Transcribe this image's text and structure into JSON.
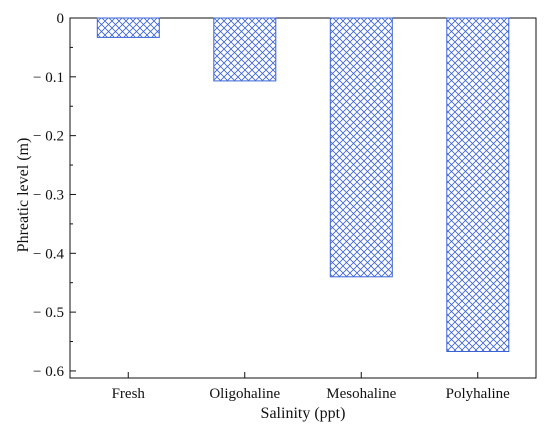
{
  "chart_data": {
    "type": "bar",
    "title": "",
    "xlabel": "Salinity (ppt)",
    "ylabel": "Phreatic level (m)",
    "categories": [
      "Fresh",
      "Oligohaline",
      "Mesohaline",
      "Polyhaline"
    ],
    "values": [
      -0.033,
      -0.107,
      -0.44,
      -0.567
    ],
    "ylim": [
      -0.612,
      0
    ],
    "yticks": [
      0,
      -0.1,
      -0.2,
      -0.3,
      -0.4,
      -0.5,
      -0.6
    ],
    "ytick_labels": [
      "0",
      "− 0.1",
      "− 0.2",
      "− 0.3",
      "− 0.4",
      "− 0.5",
      "− 0.6"
    ],
    "grid": false,
    "legend": "none",
    "bar_pattern": "crosshatch",
    "colors": {
      "bar_stroke": "#3b63d6",
      "hatch": "#3b63d6",
      "axis": "#111111"
    }
  }
}
